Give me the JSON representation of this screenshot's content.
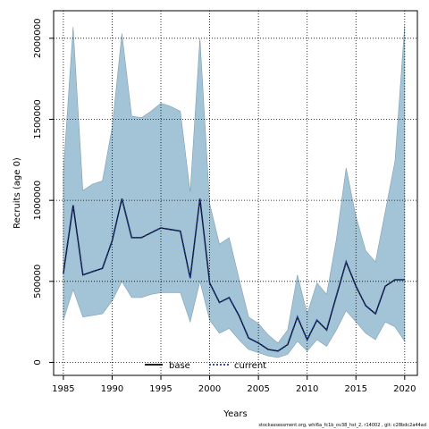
{
  "chart_data": {
    "type": "line",
    "title": "",
    "xlabel": "Years",
    "ylabel": "Recruits (age 0)",
    "xlim": [
      1984,
      2021.3
    ],
    "ylim": [
      -80000,
      2170000
    ],
    "x_ticks": [
      1985,
      1990,
      1995,
      2000,
      2005,
      2010,
      2015,
      2020
    ],
    "y_ticks": [
      0,
      500000,
      1000000,
      1500000,
      2000000
    ],
    "y_tick_labels": [
      "0",
      "500000",
      "1000000",
      "1500000",
      "2000000"
    ],
    "grid": true,
    "legend_position": "bottom-center",
    "years": [
      1985,
      1986,
      1987,
      1988,
      1989,
      1990,
      1991,
      1992,
      1993,
      1994,
      1995,
      1996,
      1997,
      1998,
      1999,
      2000,
      2001,
      2002,
      2003,
      2004,
      2005,
      2006,
      2007,
      2008,
      2009,
      2010,
      2011,
      2012,
      2013,
      2014,
      2015,
      2016,
      2017,
      2018,
      2019,
      2020
    ],
    "band": {
      "upper": [
        1180000,
        2070000,
        1060000,
        1100000,
        1120000,
        1450000,
        2030000,
        1520000,
        1510000,
        1550000,
        1600000,
        1580000,
        1550000,
        1050000,
        2000000,
        980000,
        730000,
        770000,
        520000,
        280000,
        240000,
        170000,
        120000,
        200000,
        540000,
        300000,
        490000,
        420000,
        760000,
        1200000,
        900000,
        690000,
        620000,
        930000,
        1240000,
        2080000
      ],
      "lower": [
        260000,
        450000,
        280000,
        290000,
        300000,
        380000,
        500000,
        400000,
        400000,
        420000,
        430000,
        430000,
        430000,
        250000,
        500000,
        260000,
        180000,
        210000,
        140000,
        80000,
        60000,
        40000,
        30000,
        50000,
        130000,
        70000,
        140000,
        100000,
        200000,
        320000,
        250000,
        180000,
        140000,
        250000,
        220000,
        130000
      ]
    },
    "series": [
      {
        "name": "base",
        "color": "#000000",
        "style": "solid",
        "values": [
          550000,
          970000,
          540000,
          560000,
          580000,
          750000,
          1010000,
          770000,
          770000,
          800000,
          830000,
          820000,
          810000,
          520000,
          1010000,
          490000,
          370000,
          400000,
          290000,
          150000,
          120000,
          80000,
          70000,
          110000,
          280000,
          140000,
          260000,
          200000,
          410000,
          620000,
          470000,
          350000,
          300000,
          470000,
          510000,
          510000
        ]
      },
      {
        "name": "current",
        "color": "#1a3a8f",
        "style": "dotted",
        "values": [
          550000,
          970000,
          540000,
          560000,
          580000,
          750000,
          1010000,
          770000,
          770000,
          800000,
          830000,
          820000,
          810000,
          520000,
          1010000,
          490000,
          370000,
          400000,
          290000,
          150000,
          120000,
          80000,
          70000,
          110000,
          280000,
          140000,
          260000,
          200000,
          410000,
          620000,
          470000,
          350000,
          300000,
          470000,
          510000,
          510000
        ]
      }
    ],
    "band_color": "#a3c4d6",
    "footnote": "stockassessment.org, whi6a_fc1b_ov38_hst_2, r14002 , git: c28bdc2a44ad"
  }
}
